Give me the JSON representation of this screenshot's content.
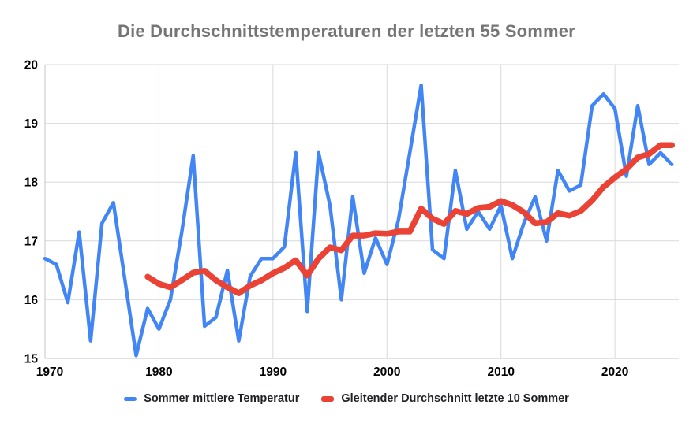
{
  "title": "Die Durchschnittstemperaturen der letzten 55 Sommer",
  "legend": [
    {
      "label": "Sommer mittlere Temperatur",
      "color": "#4285F4"
    },
    {
      "label": "Gleitender Durchschnitt letzte 10 Sommer",
      "color": "#EA4335"
    }
  ],
  "colors": {
    "title_text": "#757575",
    "axis_label_text": "#000000",
    "gridline": "#d9d9d9",
    "axis_line": "#c4c4c4",
    "background": "#ffffff",
    "series_blue": "#4285F4",
    "series_red": "#EA4335"
  },
  "chart_data": {
    "type": "line",
    "title": "Die Durchschnittstemperaturen der letzten 55 Sommer",
    "xlabel": "",
    "ylabel": "",
    "grid": true,
    "legend_position": "bottom",
    "xlim": [
      1970,
      2025.6
    ],
    "ylim": [
      15,
      20
    ],
    "x_ticks": [
      1970,
      1980,
      1990,
      2000,
      2010,
      2020
    ],
    "y_ticks": [
      15,
      16,
      17,
      18,
      19,
      20
    ],
    "series": [
      {
        "name": "Sommer mittlere Temperatur",
        "slug": "sommer-mittlere-temperatur",
        "color": "#4285F4",
        "stroke_width": 4.5,
        "x": [
          1970,
          1971,
          1972,
          1973,
          1974,
          1975,
          1976,
          1977,
          1978,
          1979,
          1980,
          1981,
          1982,
          1983,
          1984,
          1985,
          1986,
          1987,
          1988,
          1989,
          1990,
          1991,
          1992,
          1993,
          1994,
          1995,
          1996,
          1997,
          1998,
          1999,
          2000,
          2001,
          2002,
          2003,
          2004,
          2005,
          2006,
          2007,
          2008,
          2009,
          2010,
          2011,
          2012,
          2013,
          2014,
          2015,
          2016,
          2017,
          2018,
          2019,
          2020,
          2021,
          2022,
          2023,
          2024,
          2025
        ],
        "values": [
          16.7,
          16.6,
          15.95,
          17.15,
          15.3,
          17.3,
          17.65,
          16.35,
          15.05,
          15.85,
          15.5,
          16.0,
          17.15,
          18.45,
          15.55,
          15.7,
          16.5,
          15.3,
          16.4,
          16.7,
          16.7,
          16.9,
          18.5,
          15.8,
          18.5,
          17.6,
          16.0,
          17.75,
          16.45,
          17.05,
          16.6,
          17.35,
          18.5,
          19.65,
          16.85,
          16.7,
          18.2,
          17.2,
          17.5,
          17.2,
          17.6,
          16.7,
          17.3,
          17.75,
          17.0,
          18.2,
          17.85,
          17.95,
          19.3,
          19.5,
          19.25,
          18.1,
          19.3,
          18.3,
          18.5,
          18.3
        ]
      },
      {
        "name": "Gleitender Durchschnitt letzte 10 Sommer",
        "slug": "gleitender-durchschnitt-letzte-10-sommer",
        "color": "#EA4335",
        "stroke_width": 7.5,
        "x": [
          1979,
          1980,
          1981,
          1982,
          1983,
          1984,
          1985,
          1986,
          1987,
          1988,
          1989,
          1990,
          1991,
          1992,
          1993,
          1994,
          1995,
          1996,
          1997,
          1998,
          1999,
          2000,
          2001,
          2002,
          2003,
          2004,
          2005,
          2006,
          2007,
          2008,
          2009,
          2010,
          2011,
          2012,
          2013,
          2014,
          2015,
          2016,
          2017,
          2018,
          2019,
          2020,
          2021,
          2022,
          2023,
          2024,
          2025
        ],
        "values": [
          16.39,
          16.27,
          16.21,
          16.33,
          16.46,
          16.49,
          16.33,
          16.21,
          16.11,
          16.24,
          16.33,
          16.45,
          16.54,
          16.67,
          16.41,
          16.7,
          16.89,
          16.84,
          17.09,
          17.09,
          17.13,
          17.12,
          17.16,
          17.16,
          17.55,
          17.38,
          17.29,
          17.51,
          17.46,
          17.56,
          17.58,
          17.68,
          17.61,
          17.49,
          17.3,
          17.32,
          17.47,
          17.43,
          17.51,
          17.69,
          17.92,
          18.08,
          18.22,
          18.42,
          18.48,
          18.63,
          18.63
        ]
      }
    ]
  }
}
